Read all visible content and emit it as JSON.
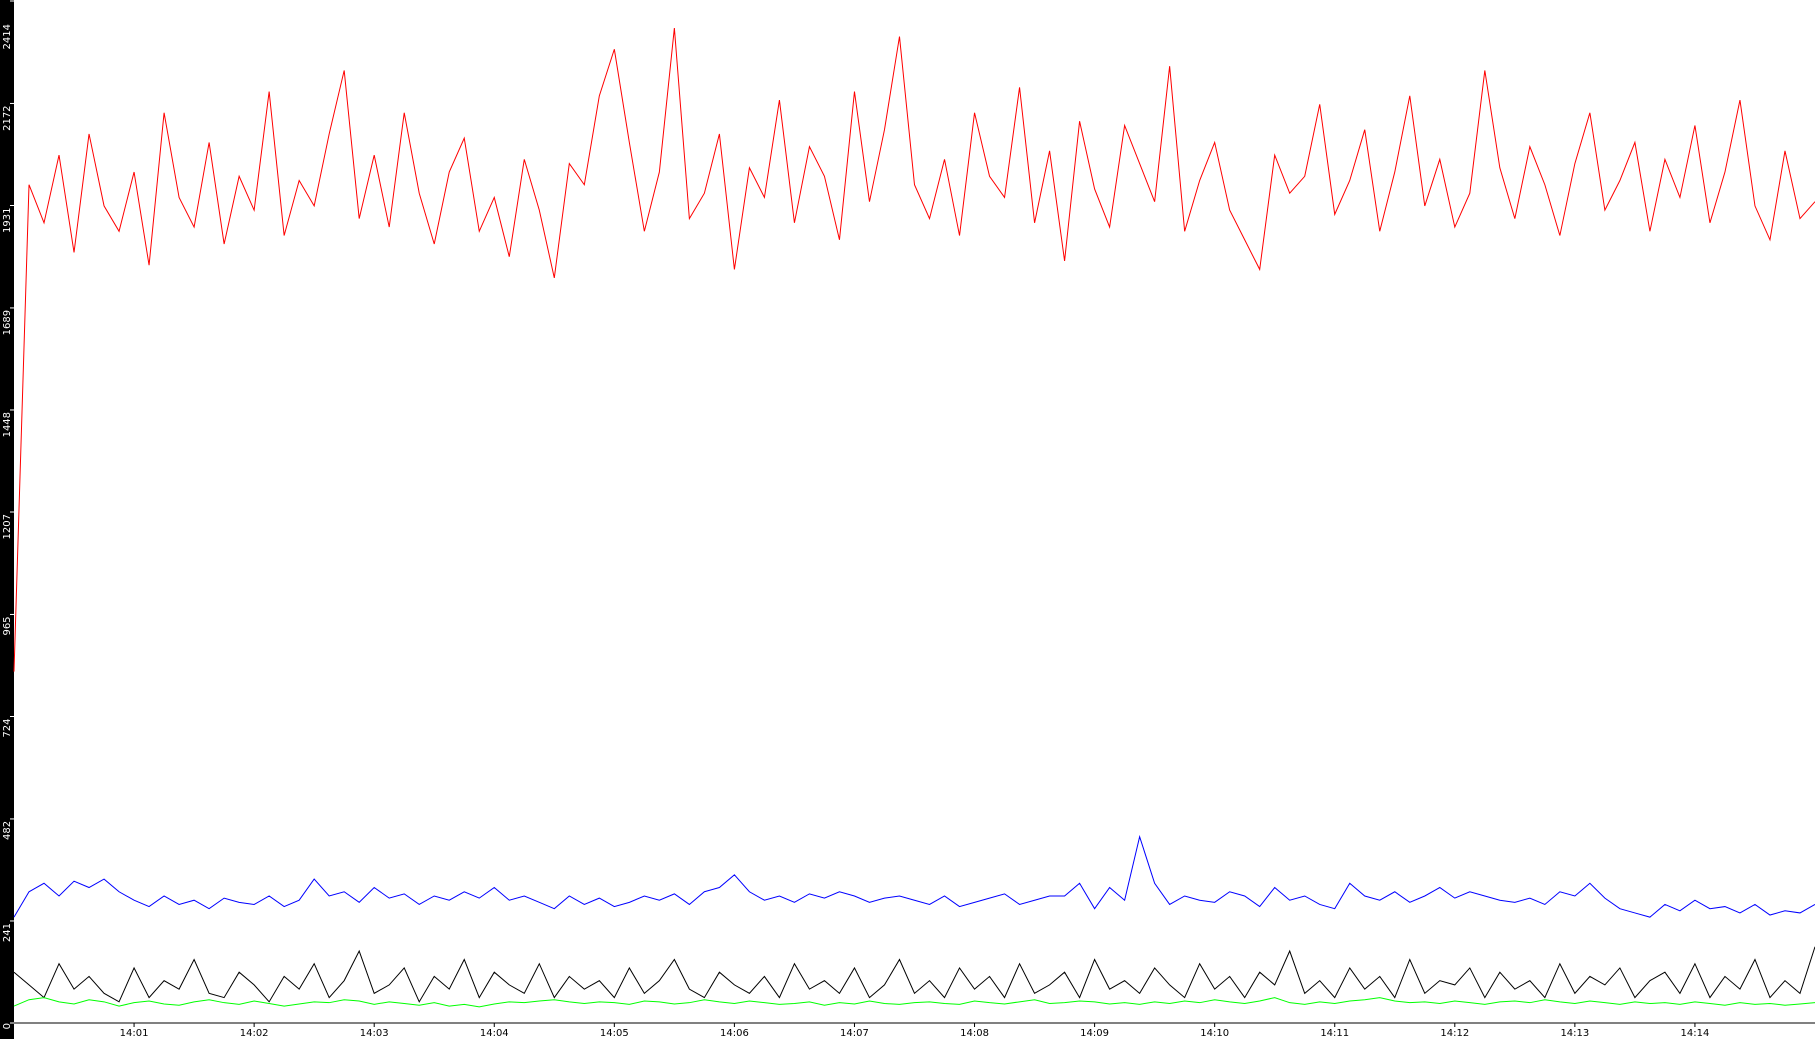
{
  "chart_data": {
    "type": "line",
    "categories": [
      null,
      null,
      null,
      null,
      null,
      null,
      null,
      null,
      "14:01",
      null,
      null,
      null,
      null,
      null,
      null,
      null,
      "14:02",
      null,
      null,
      null,
      null,
      null,
      null,
      null,
      "14:03",
      null,
      null,
      null,
      null,
      null,
      null,
      null,
      "14:04",
      null,
      null,
      null,
      null,
      null,
      null,
      null,
      "14:05",
      null,
      null,
      null,
      null,
      null,
      null,
      null,
      "14:06",
      null,
      null,
      null,
      null,
      null,
      null,
      null,
      "14:07",
      null,
      null,
      null,
      null,
      null,
      null,
      null,
      "14:08",
      null,
      null,
      null,
      null,
      null,
      null,
      null,
      "14:09",
      null,
      null,
      null,
      null,
      null,
      null,
      null,
      "14:10",
      null,
      null,
      null,
      null,
      null,
      null,
      null,
      "14:11",
      null,
      null,
      null,
      null,
      null,
      null,
      null,
      "14:12",
      null,
      null,
      null,
      null,
      null,
      null,
      null,
      "14:13",
      null,
      null,
      null,
      null,
      null,
      null,
      null,
      "14:14",
      null,
      null,
      null,
      null,
      null,
      null,
      null,
      null
    ],
    "ylim": [
      0,
      2414
    ],
    "yticks": [
      0,
      241,
      482,
      724,
      965,
      1207,
      1448,
      1689,
      1931,
      2172,
      2414
    ],
    "series": [
      {
        "color": "#ff0000",
        "values": [
          830,
          1980,
          1890,
          2050,
          1820,
          2100,
          1930,
          1870,
          2010,
          1790,
          2150,
          1950,
          1880,
          2080,
          1840,
          2000,
          1920,
          2200,
          1860,
          1990,
          1930,
          2100,
          2250,
          1900,
          2050,
          1880,
          2150,
          1960,
          1840,
          2010,
          2090,
          1870,
          1950,
          1810,
          2040,
          1920,
          1760,
          2030,
          1980,
          2190,
          2300,
          2080,
          1870,
          2010,
          2350,
          1900,
          1960,
          2100,
          1780,
          2020,
          1950,
          2180,
          1890,
          2070,
          2000,
          1850,
          2200,
          1940,
          2110,
          2330,
          1980,
          1900,
          2040,
          1860,
          2150,
          2000,
          1950,
          2210,
          1890,
          2060,
          1800,
          2130,
          1970,
          1880,
          2120,
          2030,
          1940,
          2260,
          1870,
          1990,
          2080,
          1920,
          1850,
          1780,
          2050,
          1960,
          2000,
          2170,
          1910,
          1990,
          2110,
          1870,
          2010,
          2190,
          1930,
          2040,
          1880,
          1960,
          2250,
          2020,
          1900,
          2070,
          1980,
          1860,
          2030,
          2150,
          1920,
          1990,
          2080,
          1870,
          2040,
          1950,
          2120,
          1890,
          2010,
          2180,
          1930,
          1850,
          2060,
          1900,
          1940
        ]
      },
      {
        "color": "#0000ff",
        "values": [
          250,
          310,
          330,
          300,
          335,
          320,
          340,
          310,
          290,
          275,
          300,
          280,
          290,
          270,
          295,
          285,
          280,
          300,
          275,
          290,
          340,
          300,
          310,
          285,
          320,
          295,
          305,
          280,
          300,
          290,
          310,
          295,
          320,
          290,
          300,
          285,
          270,
          300,
          280,
          295,
          275,
          285,
          300,
          290,
          305,
          280,
          310,
          320,
          350,
          310,
          290,
          300,
          285,
          305,
          295,
          310,
          300,
          285,
          295,
          300,
          290,
          280,
          300,
          275,
          285,
          295,
          305,
          280,
          290,
          300,
          300,
          330,
          270,
          320,
          290,
          440,
          330,
          280,
          300,
          290,
          285,
          310,
          300,
          275,
          320,
          290,
          300,
          280,
          270,
          330,
          300,
          290,
          310,
          285,
          300,
          320,
          295,
          310,
          300,
          290,
          285,
          295,
          280,
          310,
          300,
          330,
          295,
          270,
          260,
          250,
          280,
          265,
          290,
          270,
          275,
          260,
          280,
          255,
          265,
          260,
          280
        ]
      },
      {
        "color": "#000000",
        "values": [
          120,
          90,
          60,
          140,
          80,
          110,
          70,
          50,
          130,
          60,
          100,
          80,
          150,
          70,
          60,
          120,
          90,
          50,
          110,
          80,
          140,
          60,
          100,
          170,
          70,
          90,
          130,
          50,
          110,
          80,
          150,
          60,
          120,
          90,
          70,
          140,
          60,
          110,
          80,
          100,
          60,
          130,
          70,
          100,
          150,
          80,
          60,
          120,
          90,
          70,
          110,
          60,
          140,
          80,
          100,
          70,
          130,
          60,
          90,
          150,
          70,
          100,
          60,
          130,
          80,
          110,
          60,
          140,
          70,
          90,
          120,
          60,
          150,
          80,
          100,
          70,
          130,
          90,
          60,
          140,
          80,
          110,
          60,
          120,
          90,
          170,
          70,
          100,
          60,
          130,
          80,
          110,
          60,
          150,
          70,
          100,
          90,
          130,
          60,
          120,
          80,
          100,
          60,
          140,
          70,
          110,
          90,
          130,
          60,
          100,
          120,
          70,
          140,
          60,
          110,
          80,
          150,
          60,
          100,
          70,
          180
        ]
      },
      {
        "color": "#00ff00",
        "values": [
          40,
          55,
          60,
          50,
          45,
          55,
          50,
          40,
          48,
          52,
          45,
          42,
          50,
          55,
          48,
          44,
          52,
          46,
          40,
          45,
          50,
          48,
          55,
          52,
          44,
          50,
          46,
          42,
          48,
          40,
          44,
          38,
          45,
          50,
          48,
          52,
          55,
          50,
          46,
          50,
          48,
          44,
          52,
          50,
          45,
          48,
          55,
          50,
          46,
          52,
          48,
          44,
          46,
          50,
          42,
          48,
          45,
          52,
          46,
          44,
          48,
          50,
          46,
          44,
          52,
          48,
          45,
          50,
          55,
          46,
          48,
          52,
          50,
          45,
          48,
          44,
          50,
          46,
          52,
          48,
          55,
          50,
          46,
          52,
          60,
          48,
          44,
          50,
          46,
          52,
          55,
          60,
          52,
          48,
          50,
          46,
          52,
          48,
          44,
          50,
          52,
          48,
          55,
          50,
          46,
          52,
          48,
          44,
          50,
          46,
          48,
          44,
          50,
          46,
          42,
          48,
          44,
          46,
          42,
          45,
          48
        ]
      }
    ]
  }
}
